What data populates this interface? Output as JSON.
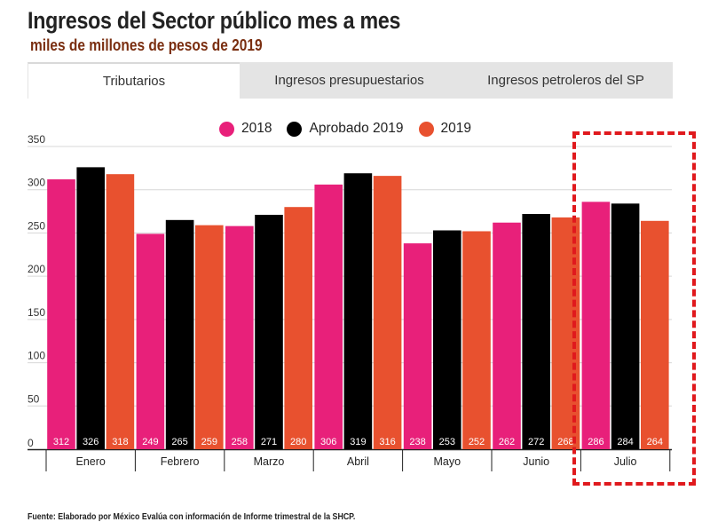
{
  "header": {
    "title": "Ingresos del Sector público mes a mes",
    "subtitle": "miles de millones de pesos de 2019"
  },
  "tabs": [
    {
      "label": "Tributarios",
      "active": true
    },
    {
      "label": "Ingresos presupuestarios",
      "active": false
    },
    {
      "label": "Ingresos petroleros del SP",
      "active": false
    }
  ],
  "footnote": "Fuente: Elaborado por México Evalúa con información de Informe trimestral de la SHCP.",
  "highlight_category": "Julio",
  "chart_data": {
    "type": "bar",
    "title": "Ingresos del Sector público mes a mes",
    "subtitle": "miles de millones de pesos de 2019",
    "xlabel": "",
    "ylabel": "",
    "ylim": [
      0,
      350
    ],
    "yticks": [
      0,
      50,
      100,
      150,
      200,
      250,
      300,
      350
    ],
    "grid": true,
    "legend_position": "top-center",
    "categories": [
      "Enero",
      "Febrero",
      "Marzo",
      "Abril",
      "Mayo",
      "Junio",
      "Julio"
    ],
    "series": [
      {
        "name": "2018",
        "color": "#e8207a",
        "values": [
          312,
          249,
          258,
          306,
          238,
          262,
          286
        ]
      },
      {
        "name": "Aprobado 2019",
        "color": "#000000",
        "values": [
          326,
          265,
          271,
          319,
          253,
          272,
          284
        ]
      },
      {
        "name": "2019",
        "color": "#e8512f",
        "values": [
          318,
          259,
          280,
          316,
          252,
          268,
          264
        ]
      }
    ]
  }
}
